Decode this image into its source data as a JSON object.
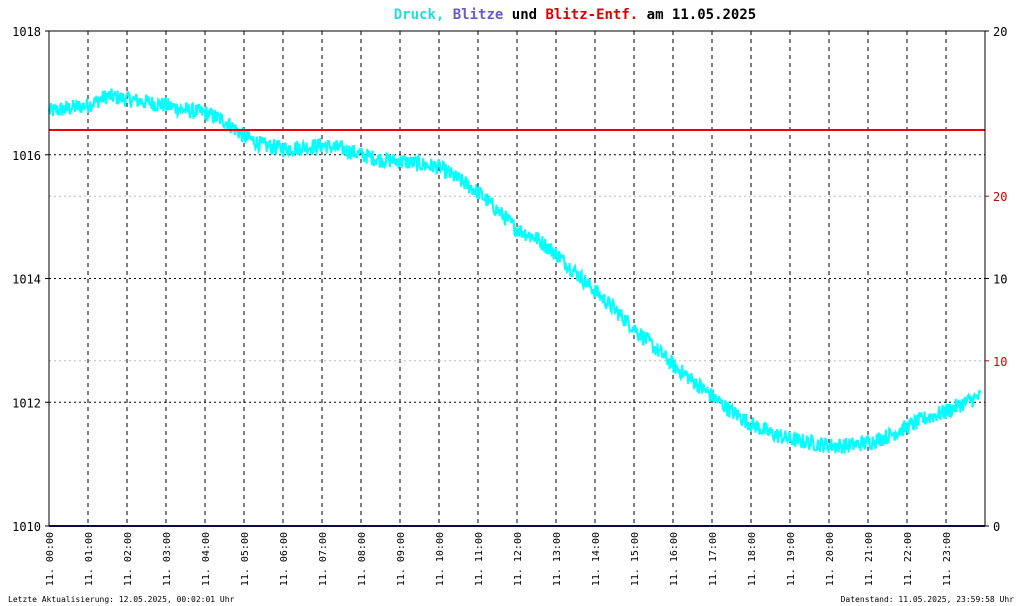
{
  "chart_data": {
    "type": "line",
    "title": {
      "parts": [
        {
          "text": "Druck,",
          "color": "#22dddd"
        },
        {
          "text": "Blitze",
          "color": "#6a5acd"
        },
        {
          "text": "und",
          "color": "#000000"
        },
        {
          "text": "Blitz-Entf.",
          "color": "#dd0000"
        },
        {
          "text": "am 11.05.2025",
          "color": "#000000"
        }
      ]
    },
    "y_left": {
      "ylim": [
        1010,
        1018
      ],
      "ticks": [
        "1010",
        "1012",
        "1014",
        "1016",
        "1018"
      ]
    },
    "y_right": {
      "ticks_black": [
        {
          "label": "0",
          "value": 1010
        },
        {
          "label": "10",
          "value": 1014
        },
        {
          "label": "20",
          "value": 1018
        }
      ],
      "ticks_red": [
        {
          "label": "10",
          "value": 1012.67
        },
        {
          "label": "20",
          "value": 1015.33
        }
      ]
    },
    "x_axis": {
      "xlim": [
        0,
        24
      ],
      "tick_hours": [
        0,
        1,
        2,
        3,
        4,
        5,
        6,
        7,
        8,
        9,
        10,
        11,
        12,
        13,
        14,
        15,
        16,
        17,
        18,
        19,
        20,
        21,
        22,
        23
      ],
      "tick_labels": [
        "11. 00:00",
        "11. 01:00",
        "11. 02:00",
        "11. 03:00",
        "11. 04:00",
        "11. 05:00",
        "11. 06:00",
        "11. 07:00",
        "11. 08:00",
        "11. 09:00",
        "11. 10:00",
        "11. 11:00",
        "11. 12:00",
        "11. 13:00",
        "11. 14:00",
        "11. 15:00",
        "11. 16:00",
        "11. 17:00",
        "11. 18:00",
        "11. 19:00",
        "11. 20:00",
        "11. 21:00",
        "11. 22:00",
        "11. 23:00"
      ]
    },
    "series": [
      {
        "name": "Druck",
        "color": "#00ffff",
        "x": [
          0,
          0.5,
          1,
          1.5,
          2,
          2.5,
          3,
          3.5,
          4,
          4.5,
          5,
          5.5,
          6,
          6.5,
          7,
          7.5,
          8,
          8.5,
          9,
          9.5,
          10,
          10.5,
          11,
          11.5,
          12,
          12.5,
          13,
          13.5,
          14,
          14.5,
          15,
          15.5,
          16,
          16.5,
          17,
          17.5,
          18,
          18.5,
          19,
          19.5,
          20,
          20.5,
          21,
          21.5,
          22,
          22.5,
          23,
          23.5,
          23.9
        ],
        "values": [
          1016.7,
          1016.75,
          1016.8,
          1016.95,
          1016.9,
          1016.85,
          1016.8,
          1016.72,
          1016.68,
          1016.55,
          1016.3,
          1016.15,
          1016.1,
          1016.12,
          1016.15,
          1016.1,
          1016.0,
          1015.92,
          1015.9,
          1015.85,
          1015.8,
          1015.6,
          1015.4,
          1015.1,
          1014.8,
          1014.65,
          1014.4,
          1014.1,
          1013.8,
          1013.5,
          1013.2,
          1012.9,
          1012.6,
          1012.35,
          1012.1,
          1011.85,
          1011.65,
          1011.5,
          1011.4,
          1011.35,
          1011.3,
          1011.3,
          1011.35,
          1011.45,
          1011.6,
          1011.75,
          1011.85,
          1012.0,
          1012.1
        ],
        "noise": 0.13
      },
      {
        "name": "Blitze",
        "color": "#1a1a7a",
        "x": [
          0,
          24
        ],
        "values": [
          1010,
          1010
        ]
      },
      {
        "name": "Blitz-Entf.",
        "color": "#ee0000",
        "x": [
          0,
          24
        ],
        "values": [
          1016.4,
          1016.4
        ]
      }
    ],
    "grid": true
  },
  "footer": {
    "left": "Letzte Aktualisierung: 12.05.2025, 00:02:01 Uhr",
    "right": "Datenstand: 11.05.2025, 23:59:58 Uhr"
  }
}
